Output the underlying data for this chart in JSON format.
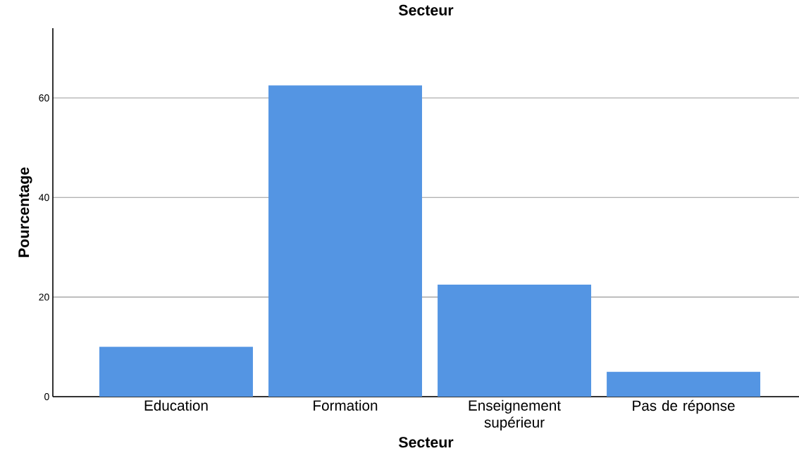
{
  "chart_data": {
    "type": "bar",
    "title": "Secteur",
    "xlabel": "Secteur",
    "ylabel": "Pourcentage",
    "categories": [
      "Education",
      "Formation",
      "Enseignement supérieur",
      "Pas de réponse"
    ],
    "values": [
      10,
      62.5,
      22.5,
      5
    ],
    "color": "#5495e3",
    "ylim": [
      0,
      74
    ],
    "yticks": [
      0,
      20,
      40,
      60
    ],
    "grid": "y"
  }
}
